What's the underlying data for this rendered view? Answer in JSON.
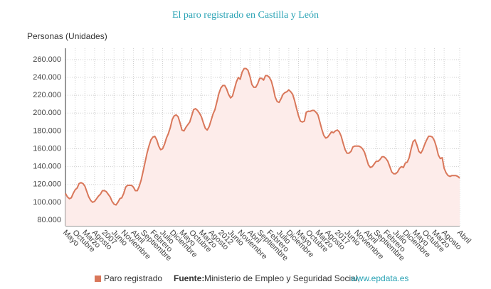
{
  "chart_data": {
    "type": "line",
    "title": "El paro registrado en Castilla y León",
    "y_label": "Personas (Unidades)",
    "source_label": "Fuente:",
    "source": "Ministerio de Empleo y Seguridad Social,",
    "source_link": "www.epdata.es",
    "categories": [
      "Mayo",
      null,
      null,
      null,
      null,
      "Octubre",
      null,
      null,
      null,
      null,
      "Marzo",
      null,
      null,
      null,
      null,
      "Agosto",
      null,
      null,
      null,
      null,
      "2007",
      null,
      null,
      null,
      null,
      "Junio",
      null,
      null,
      null,
      null,
      "Noviembre",
      null,
      null,
      null,
      null,
      "Abril",
      null,
      null,
      null,
      null,
      "Septiembre",
      null,
      null,
      null,
      null,
      "Febrero",
      null,
      null,
      null,
      null,
      "Julio",
      null,
      null,
      null,
      null,
      "Diciembre",
      null,
      null,
      null,
      null,
      "Mayo",
      null,
      null,
      null,
      null,
      "Octubre",
      null,
      null,
      null,
      null,
      "Marzo",
      null,
      null,
      null,
      null,
      "Agosto",
      null,
      null,
      null,
      null,
      "2012",
      null,
      null,
      null,
      null,
      "Junio",
      null,
      null,
      null,
      null,
      "Noviembre",
      null,
      null,
      null,
      null,
      "Abril",
      null,
      null,
      null,
      null,
      "Septiembre",
      null,
      null,
      null,
      null,
      "Febrero",
      null,
      null,
      null,
      null,
      "Julio",
      null,
      null,
      null,
      null,
      "Diciembre",
      null,
      null,
      null,
      null,
      "Mayo",
      null,
      null,
      null,
      null,
      "Octubre",
      null,
      null,
      null,
      null,
      "Marzo",
      null,
      null,
      null,
      null,
      "Agosto",
      null,
      null,
      null,
      null,
      "2017",
      null,
      null,
      null,
      null,
      "Junio",
      null,
      null,
      null,
      null,
      "Noviembre",
      null,
      null,
      null,
      null,
      "Abril",
      null,
      null,
      null,
      null,
      "Septiembre",
      null,
      null,
      null,
      null,
      "Febrero",
      null,
      null,
      null,
      null,
      "Julio",
      null,
      null,
      null,
      null,
      "Diciembre",
      null,
      null,
      null,
      null,
      "Mayo",
      null,
      null,
      null,
      null,
      "Octubre",
      null,
      null,
      null,
      null,
      "Marzo",
      null,
      null,
      null,
      null,
      "Agosto",
      null,
      null,
      null,
      null,
      null,
      null,
      null,
      "Abril"
    ],
    "series": [
      {
        "name": "Paro registrado",
        "color": "#d9775a",
        "fill": "#fdecea",
        "values": [
          110000,
          106000,
          104000,
          105000,
          110000,
          114000,
          116000,
          121000,
          122000,
          121000,
          118000,
          112000,
          106000,
          102000,
          100000,
          101000,
          104000,
          107000,
          109000,
          113000,
          113000,
          112000,
          109000,
          106000,
          101000,
          98000,
          97000,
          100000,
          104000,
          105000,
          110000,
          117000,
          119000,
          119000,
          119000,
          117000,
          113000,
          113000,
          118000,
          125000,
          135000,
          145000,
          155000,
          163000,
          170000,
          173000,
          174000,
          170000,
          163000,
          159000,
          160000,
          165000,
          172000,
          177000,
          184000,
          193000,
          197000,
          198000,
          196000,
          189000,
          181000,
          180000,
          184000,
          187000,
          190000,
          197000,
          204000,
          205000,
          203000,
          200000,
          196000,
          189000,
          183000,
          181000,
          185000,
          192000,
          199000,
          204000,
          213000,
          222000,
          228000,
          231000,
          231000,
          227000,
          221000,
          217000,
          219000,
          227000,
          235000,
          240000,
          238000,
          246000,
          250000,
          250000,
          248000,
          241000,
          232000,
          229000,
          229000,
          233000,
          239000,
          239000,
          237000,
          242000,
          242000,
          240000,
          236000,
          228000,
          218000,
          213000,
          212000,
          216000,
          221000,
          223000,
          224000,
          226000,
          224000,
          221000,
          214000,
          205000,
          197000,
          191000,
          190000,
          191000,
          201000,
          202000,
          202000,
          203000,
          203000,
          201000,
          198000,
          190000,
          182000,
          175000,
          172000,
          173000,
          176000,
          179000,
          178000,
          180000,
          181000,
          179000,
          174000,
          166000,
          159000,
          155000,
          155000,
          157000,
          162000,
          163000,
          163000,
          163000,
          162000,
          160000,
          156000,
          149000,
          142000,
          139000,
          140000,
          143000,
          146000,
          146000,
          148000,
          151000,
          151000,
          149000,
          146000,
          140000,
          134000,
          132000,
          132000,
          134000,
          138000,
          140000,
          139000,
          144000,
          145000,
          150000,
          160000,
          168000,
          170000,
          164000,
          157000,
          155000,
          159000,
          165000,
          170000,
          174000,
          174000,
          173000,
          169000,
          162000,
          153000,
          149000,
          150000,
          138000,
          133000,
          130000,
          129000,
          130000,
          130000,
          130000,
          129000,
          127000
        ]
      }
    ],
    "ylim": [
      73600,
      272700
    ],
    "yticks": [
      {
        "value": 80000,
        "label": "80.000"
      },
      {
        "value": 100000,
        "label": "100.000"
      },
      {
        "value": 120000,
        "label": "120.000"
      },
      {
        "value": 140000,
        "label": "140.000"
      },
      {
        "value": 160000,
        "label": "160.000"
      },
      {
        "value": 180000,
        "label": "180.000"
      },
      {
        "value": 200000,
        "label": "200.000"
      },
      {
        "value": 220000,
        "label": "220.000"
      },
      {
        "value": 240000,
        "label": "240.000"
      },
      {
        "value": 260000,
        "label": "260.000"
      }
    ],
    "grid": true
  }
}
